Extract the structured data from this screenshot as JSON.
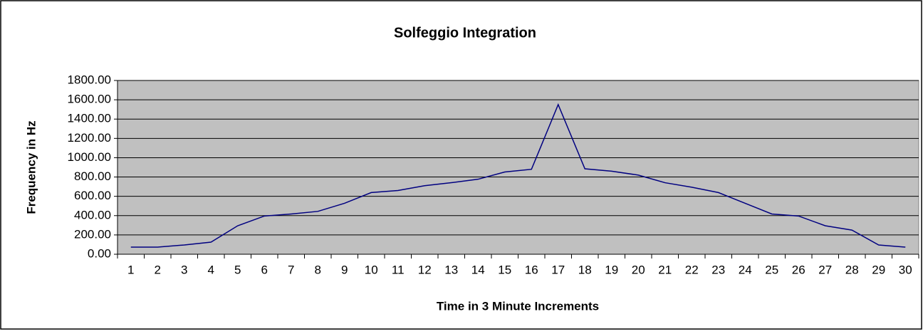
{
  "chart_data": {
    "type": "line",
    "title": "Solfeggio Integration",
    "x_label": "Time in 3 Minute Increments",
    "y_label": "Frequency in Hz",
    "categories": [
      "1",
      "2",
      "3",
      "4",
      "5",
      "6",
      "7",
      "8",
      "9",
      "10",
      "11",
      "12",
      "13",
      "14",
      "15",
      "16",
      "17",
      "18",
      "19",
      "20",
      "21",
      "22",
      "23",
      "24",
      "25",
      "26",
      "27",
      "28",
      "29",
      "30"
    ],
    "series": [
      {
        "name": "Frequency",
        "color": "#000080",
        "values": [
          74,
          74,
          96,
          125,
          295,
          396,
          417,
          444,
          528,
          639,
          660,
          710,
          741,
          777,
          852,
          880,
          1550,
          885,
          860,
          820,
          741,
          694,
          639,
          528,
          417,
          396,
          295,
          250,
          96,
          74
        ]
      }
    ],
    "ylim": [
      0,
      1800
    ],
    "yticks": [
      {
        "value": 0,
        "label": "0.00"
      },
      {
        "value": 200,
        "label": "200.00"
      },
      {
        "value": 400,
        "label": "400.00"
      },
      {
        "value": 600,
        "label": "600.00"
      },
      {
        "value": 800,
        "label": "800.00"
      },
      {
        "value": 1000,
        "label": "1000.00"
      },
      {
        "value": 1200,
        "label": "1200.00"
      },
      {
        "value": 1400,
        "label": "1400.00"
      },
      {
        "value": 1600,
        "label": "1600.00"
      },
      {
        "value": 1800,
        "label": "1800.00"
      }
    ],
    "grid": true,
    "plot_background": "#c0c0c0"
  }
}
